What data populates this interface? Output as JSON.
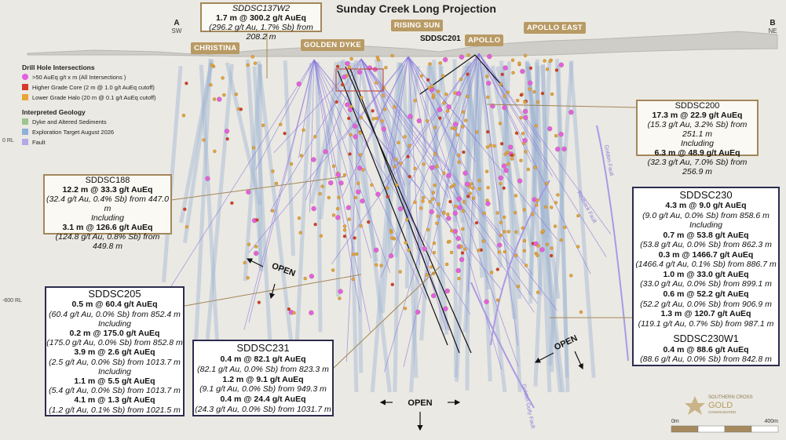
{
  "title": "Sunday Creek Long Projection",
  "section_ends": {
    "a": "A",
    "a_dir": "SW",
    "b": "B",
    "b_dir": "NE"
  },
  "prospects": [
    "CHRISTINA",
    "GOLDEN DYKE",
    "RISING SUN",
    "APOLLO",
    "APOLLO EAST"
  ],
  "hole_label": "SDDSC201",
  "rl_labels": [
    "0 RL",
    "-600 RL"
  ],
  "legend": {
    "intersections_title": "Drill Hole Intersections",
    "intersections": [
      ">50 AuEq g/t x m (All Intersections )",
      "Higher Grade Core (2 m @ 1.0 g/t AuEq cutoff)",
      "Lower Grade Halo (20 m @ 0.1 g/t AuEq cutoff)"
    ],
    "geology_title": "Interpreted Geology",
    "geology": [
      "Dyke and Altered Sediments",
      "Exploration Target August 2026",
      "Fault"
    ]
  },
  "faults": [
    "Golden Fault",
    "Redback Fault",
    "Golden Gully Fault"
  ],
  "open_labels": [
    "OPEN",
    "OPEN",
    "OPEN"
  ],
  "callouts": [
    {
      "title": "SDDSC137W2",
      "lines": [
        {
          "text": "1.7 m @ 300.2 g/t AuEq",
          "kind": "grade"
        },
        {
          "text": "(296.2 g/t Au, 1.7% Sb) from 208.2 m",
          "kind": "detail"
        }
      ]
    },
    {
      "title": "SDDSC200",
      "lines": [
        {
          "text": "17.3 m @ 22.9 g/t AuEq",
          "kind": "grade"
        },
        {
          "text": "(15.3 g/t Au, 3.2% Sb) from 251.1 m",
          "kind": "detail"
        },
        {
          "text": "Including",
          "kind": "detail"
        },
        {
          "text": "6.3 m @ 48.9 g/t AuEq",
          "kind": "grade"
        },
        {
          "text": "(32.3 g/t Au, 7.0% Sb) from 256.9 m",
          "kind": "detail"
        }
      ]
    },
    {
      "title": "SDDSC188",
      "lines": [
        {
          "text": "12.2 m @ 33.3 g/t AuEq",
          "kind": "grade"
        },
        {
          "text": "(32.4 g/t Au, 0.4% Sb) from 447.0 m",
          "kind": "detail"
        },
        {
          "text": "Including",
          "kind": "detail"
        },
        {
          "text": "3.1 m @ 126.6 g/t AuEq",
          "kind": "grade"
        },
        {
          "text": "(124.8 g/t Au, 0.8% Sb) from 449.8 m",
          "kind": "detail"
        }
      ]
    },
    {
      "title": "SDDSC230",
      "lines": [
        {
          "text": "4.3 m @ 9.0 g/t AuEq",
          "kind": "grade"
        },
        {
          "text": "(9.0 g/t Au, 0.0% Sb) from 858.6 m",
          "kind": "detail"
        },
        {
          "text": "Including",
          "kind": "detail"
        },
        {
          "text": "0.7 m @ 53.8 g/t AuEq",
          "kind": "grade"
        },
        {
          "text": "(53.8 g/t Au, 0.0% Sb) from 862.3 m",
          "kind": "detail"
        },
        {
          "text": "0.3 m @ 1466.7 g/t AuEq",
          "kind": "grade"
        },
        {
          "text": "(1466.4 g/t Au, 0.1% Sb) from 886.7 m",
          "kind": "detail"
        },
        {
          "text": "1.0 m @ 33.0 g/t AuEq",
          "kind": "grade"
        },
        {
          "text": "(33.0 g/t Au, 0.0% Sb) from 899.1 m",
          "kind": "detail"
        },
        {
          "text": "0.6 m @ 52.2 g/t AuEq",
          "kind": "grade"
        },
        {
          "text": "(52.2 g/t Au, 0.0% Sb) from 906.9 m",
          "kind": "detail"
        },
        {
          "text": "1.3 m @ 120.7 g/t AuEq",
          "kind": "grade"
        },
        {
          "text": "(119.1 g/t Au, 0.7% Sb) from 987.1 m",
          "kind": "detail"
        },
        {
          "text": "SDDSC230W1",
          "kind": "heading"
        },
        {
          "text": "0.4 m @ 88.6 g/t AuEq",
          "kind": "grade"
        },
        {
          "text": "(88.6 g/t Au, 0.0% Sb) from 842.8 m",
          "kind": "detail"
        }
      ]
    },
    {
      "title": "SDDSC205",
      "lines": [
        {
          "text": "0.5 m @ 60.4 g/t AuEq",
          "kind": "grade"
        },
        {
          "text": "(60.4 g/t Au, 0.0% Sb) from 852.4 m",
          "kind": "detail"
        },
        {
          "text": "Including",
          "kind": "detail"
        },
        {
          "text": "0.2 m @ 175.0 g/t AuEq",
          "kind": "grade"
        },
        {
          "text": "(175.0 g/t Au, 0.0% Sb) from 852.8 m",
          "kind": "detail"
        },
        {
          "text": "3.9 m @ 2.6 g/t AuEq",
          "kind": "grade"
        },
        {
          "text": "(2.5 g/t Au, 0.0% Sb) from 1013.7 m",
          "kind": "detail"
        },
        {
          "text": "Including",
          "kind": "detail"
        },
        {
          "text": "1.1 m @ 5.5 g/t AuEq",
          "kind": "grade"
        },
        {
          "text": "(5.4 g/t Au, 0.0% Sb) from 1013.7 m",
          "kind": "detail"
        },
        {
          "text": "4.1 m @ 1.3 g/t AuEq",
          "kind": "grade"
        },
        {
          "text": "(1.2 g/t Au, 0.1% Sb) from 1021.5 m",
          "kind": "detail"
        }
      ]
    },
    {
      "title": "SDDSC231",
      "lines": [
        {
          "text": "0.4 m @ 82.1 g/t AuEq",
          "kind": "grade"
        },
        {
          "text": "(82.1 g/t Au, 0.0% Sb) from 823.3 m",
          "kind": "detail"
        },
        {
          "text": "1.2 m @ 9.1 g/t AuEq",
          "kind": "grade"
        },
        {
          "text": "(9.1 g/t Au, 0.0% Sb) from 949.3 m",
          "kind": "detail"
        },
        {
          "text": "0.4 m @ 24.4 g/t AuEq",
          "kind": "grade"
        },
        {
          "text": "(24.3 g/t Au, 0.0% Sb) from 1031.7 m",
          "kind": "detail"
        }
      ]
    }
  ],
  "logo": {
    "line1": "SOUTHERN CROSS",
    "line2": "GOLD",
    "line3": "CONSOLIDATED"
  },
  "scale": {
    "start": "0m",
    "end": "400m"
  }
}
